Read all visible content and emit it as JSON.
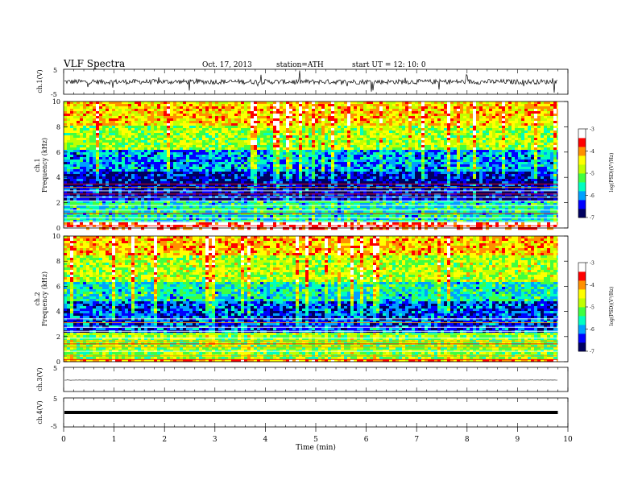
{
  "header": {
    "title": "VLF  Spectra",
    "date": "Oct. 17, 2013",
    "station": "station=ATH",
    "start": "start  UT  =   12: 10: 0"
  },
  "chart_data": [
    {
      "type": "line",
      "channel": "ch.1",
      "ylabel": "ch.1(V)",
      "ylim": [
        -5,
        5
      ],
      "yticks": [
        "5",
        "-5"
      ],
      "description_values": {
        "baseline": 0.0,
        "noise_amplitude": 1.0
      }
    },
    {
      "type": "heatmap",
      "channel": "ch.1",
      "ylabel": "ch.1",
      "ylabel2": "Frequency  (kHz)",
      "ylim": [
        0,
        10
      ],
      "yticks": [
        "0",
        "2",
        "4",
        "6",
        "8",
        "10"
      ],
      "colorbar": {
        "label": "log(PSD)(V²/Hz)",
        "range": [
          -7,
          -3
        ],
        "ticks": [
          "-3",
          "-4",
          "-5",
          "-6",
          "-7"
        ]
      },
      "bands": [
        {
          "from": 0,
          "to": 0.5,
          "level": -3.4
        },
        {
          "from": 0.5,
          "to": 2.2,
          "level": -5.6
        },
        {
          "from": 2.2,
          "to": 4.6,
          "level": -6.6
        },
        {
          "from": 4.6,
          "to": 6.2,
          "level": -6.0
        },
        {
          "from": 6.2,
          "to": 8.2,
          "level": -4.9
        },
        {
          "from": 8.2,
          "to": 10,
          "level": -4.3
        }
      ]
    },
    {
      "type": "heatmap",
      "channel": "ch.2",
      "ylabel": "ch.2",
      "ylabel2": "Frequency  (kHz)",
      "ylim": [
        0,
        10
      ],
      "yticks": [
        "0",
        "2",
        "4",
        "6",
        "8",
        "10"
      ],
      "colorbar": {
        "label": "log(PSD)(V²/Hz)",
        "range": [
          -7,
          -3
        ],
        "ticks": [
          "-3",
          "-4",
          "-5",
          "-6",
          "-7"
        ]
      },
      "bands": [
        {
          "from": 0,
          "to": 0.3,
          "level": -4.0
        },
        {
          "from": 0.3,
          "to": 2.5,
          "level": -5.0
        },
        {
          "from": 2.5,
          "to": 5.0,
          "level": -6.3
        },
        {
          "from": 5.0,
          "to": 6.5,
          "level": -5.6
        },
        {
          "from": 6.5,
          "to": 8.5,
          "level": -4.8
        },
        {
          "from": 8.5,
          "to": 10,
          "level": -4.2
        }
      ]
    },
    {
      "type": "line",
      "channel": "ch.3",
      "ylabel": "ch.3(V)",
      "ylim": [
        -5,
        5
      ],
      "yticks": [
        "5"
      ],
      "description_values": {
        "baseline": -0.3,
        "noise_amplitude": 0.05
      }
    },
    {
      "type": "line",
      "channel": "ch.4",
      "ylabel": "ch.4(V)",
      "ylim": [
        -5,
        5
      ],
      "yticks": [
        "5",
        "-5"
      ],
      "description_values": {
        "baseline": 0.0,
        "noise_amplitude": 0.2
      }
    }
  ],
  "x_axis": {
    "label": "Time  (min)",
    "range": [
      0,
      10
    ],
    "ticks": [
      "0",
      "1",
      "2",
      "3",
      "4",
      "5",
      "6",
      "7",
      "8",
      "9",
      "10"
    ],
    "data_end": 9.8
  },
  "colors": {
    "scale": [
      "#000060",
      "#0000ff",
      "#00a0ff",
      "#00ffc0",
      "#40ff40",
      "#c0ff00",
      "#ffff00",
      "#ff9000",
      "#ff0000",
      "#ffffff"
    ]
  }
}
